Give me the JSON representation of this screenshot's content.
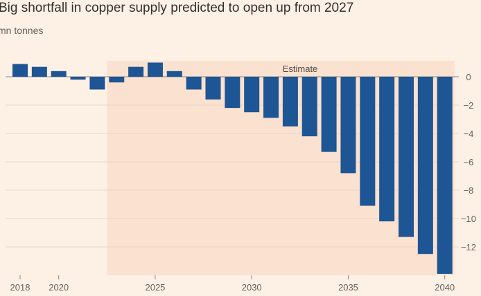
{
  "title": "Big shortfall in copper supply predicted to open up from 2027",
  "subtitle": "mn tonnes",
  "colors": {
    "background": "#fdf1e6",
    "estimate_region": "#fbe1cf",
    "bar": "#1e5594",
    "grid": "#e5d8cc",
    "zero_line": "#8a847f"
  },
  "chart_data": {
    "type": "bar",
    "title": "Big shortfall in copper supply predicted to open up from 2027",
    "ylabel": "mn tonnes",
    "xlabel": "",
    "categories": [
      2018,
      2019,
      2020,
      2021,
      2022,
      2023,
      2024,
      2025,
      2026,
      2027,
      2028,
      2029,
      2030,
      2031,
      2032,
      2033,
      2034,
      2035,
      2036,
      2037,
      2038,
      2039,
      2040
    ],
    "values": [
      0.9,
      0.7,
      0.4,
      -0.2,
      -0.9,
      -0.4,
      0.7,
      1.0,
      0.4,
      -0.9,
      -1.6,
      -2.2,
      -2.5,
      -2.9,
      -3.5,
      -4.2,
      -5.3,
      -6.8,
      -9.1,
      -10.2,
      -11.3,
      -12.5,
      -13.9
    ],
    "ylim": [
      -14,
      1.2
    ],
    "y_ticks": [
      0,
      -2,
      -4,
      -6,
      -8,
      -10,
      -12
    ],
    "x_tick_labels": [
      2018,
      2020,
      2025,
      2030,
      2035,
      2040
    ],
    "shaded_region": {
      "from": 2023,
      "to": 2040,
      "label": "Estimate"
    },
    "grid": true,
    "y_axis_side": "right"
  }
}
